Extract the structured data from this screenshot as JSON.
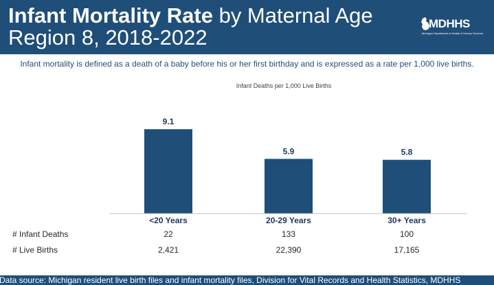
{
  "header": {
    "title_bold": "Infant Mortality Rate",
    "title_rest": " by Maternal Age",
    "title_line2": "Region 8, 2018-2022"
  },
  "logo": {
    "text": "MDHHS",
    "subtext": "Michigan Department of Health & Human Services"
  },
  "subtitle": "Infant mortality is defined as a death of a baby before his or her first birthday and is expressed as a rate per 1,000 live births.",
  "table": {
    "row_labels": [
      "# Infant Deaths",
      "# Live Births"
    ],
    "infant_deaths": [
      "22",
      "133",
      "100"
    ],
    "live_births": [
      "2,421",
      "22,390",
      "17,165"
    ]
  },
  "footer": {
    "text": "Data source: Michigan resident live birth files and infant mortality files, Division for Vital Records and Health Statistics, MDHHS"
  },
  "colors": {
    "bar": "#1f4e79",
    "header_bg": "#1f4e79"
  },
  "chart_data": {
    "type": "bar",
    "title": "Infant Deaths per 1,000 Live Births",
    "categories": [
      "<20 Years",
      "20-29 Years",
      "30+ Years"
    ],
    "values": [
      9.1,
      5.9,
      5.8
    ],
    "value_labels": [
      "9.1",
      "5.9",
      "5.8"
    ],
    "xlabel": "",
    "ylabel": "",
    "ylim": [
      0,
      10
    ]
  }
}
